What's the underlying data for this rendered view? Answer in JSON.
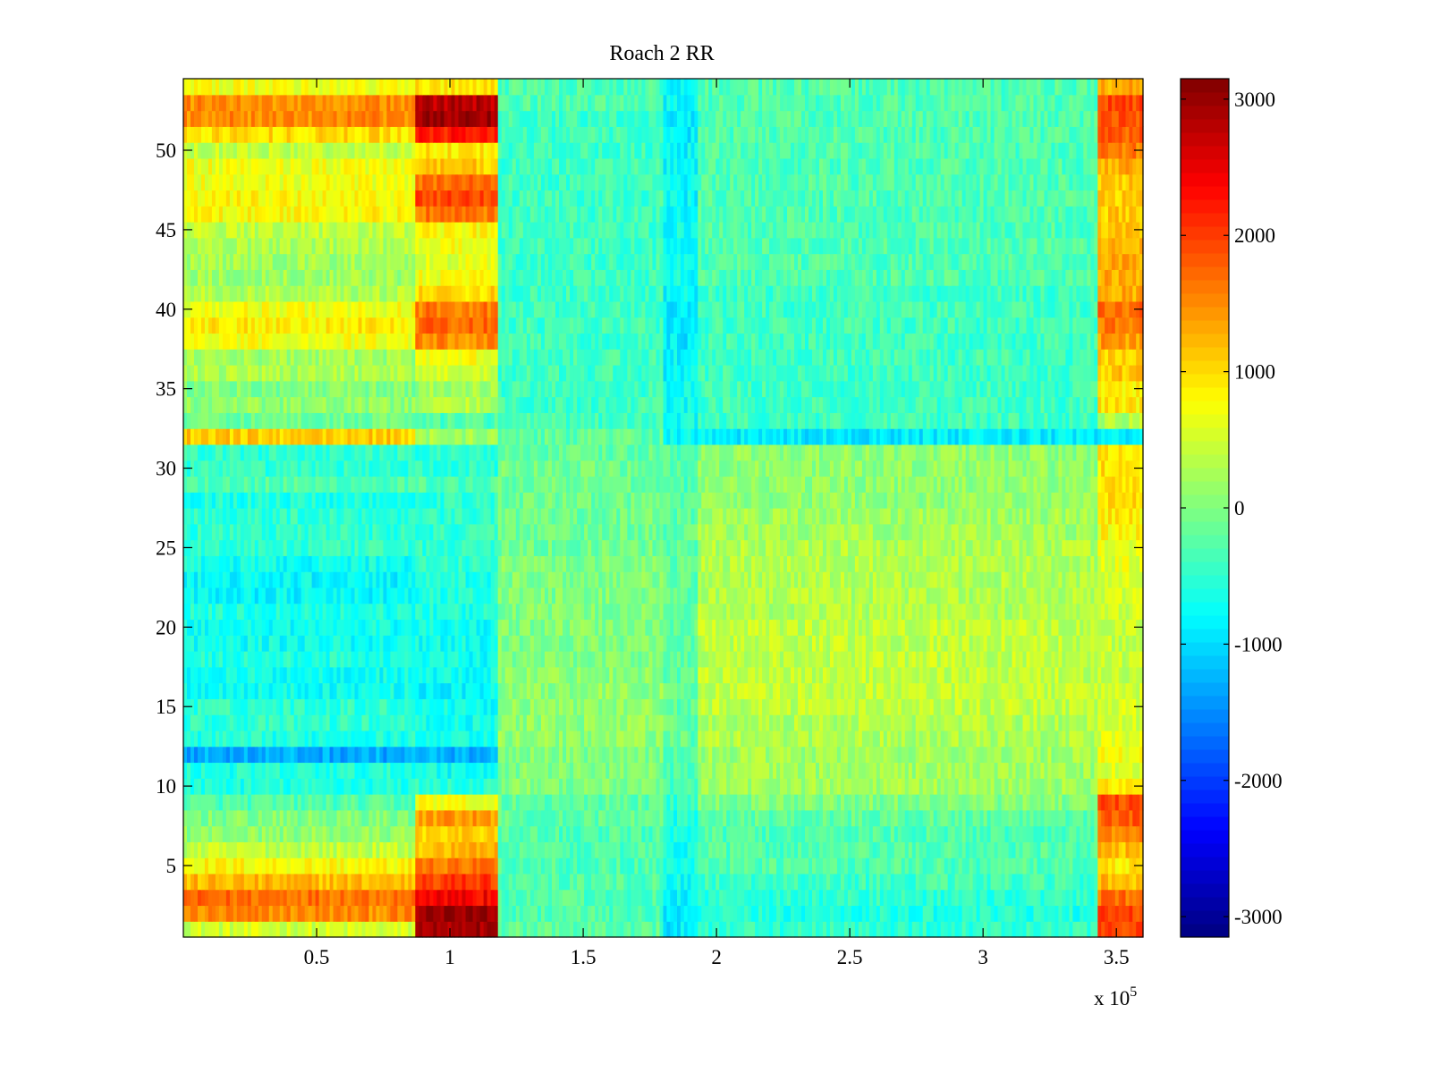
{
  "chart_data": {
    "type": "heatmap",
    "title": "Roach 2 RR",
    "xlabel": "",
    "ylabel": "",
    "x_exponent_label": "x 10",
    "x_exponent": "5",
    "xlim": [
      0,
      3.6
    ],
    "ylim": [
      0.5,
      54.5
    ],
    "x_ticks": [
      0.5,
      1,
      1.5,
      2,
      2.5,
      3,
      3.5
    ],
    "x_tick_labels": [
      "0.5",
      "1",
      "1.5",
      "2",
      "2.5",
      "3",
      "3.5"
    ],
    "y_ticks": [
      5,
      10,
      15,
      20,
      25,
      30,
      35,
      40,
      45,
      50
    ],
    "y_tick_labels": [
      "5",
      "10",
      "15",
      "20",
      "25",
      "30",
      "35",
      "40",
      "45",
      "50"
    ],
    "rows": 54,
    "colormap": "jet",
    "colorbar": {
      "clim": [
        -3150,
        3150
      ],
      "ticks": [
        -3000,
        -2000,
        -1000,
        0,
        1000,
        2000,
        3000
      ],
      "tick_labels": [
        "-3000",
        "-2000",
        "-1000",
        "0",
        "1000",
        "2000",
        "3000"
      ],
      "placement": "right"
    },
    "x_segments": [
      {
        "x_range": [
          0,
          0.87
        ],
        "description": "early segment"
      },
      {
        "x_range": [
          0.87,
          1.18
        ],
        "description": "peak segment"
      },
      {
        "x_range": [
          1.18,
          1.8
        ],
        "description": "middle segment"
      },
      {
        "x_range": [
          1.8,
          1.93
        ],
        "description": "dip segment"
      },
      {
        "x_range": [
          1.93,
          3.43
        ],
        "description": "late segment"
      },
      {
        "x_range": [
          3.43,
          3.6
        ],
        "description": "end segment"
      }
    ],
    "row_levels": {
      "early": [
        500,
        1500,
        1700,
        1200,
        800,
        400,
        100,
        0,
        -300,
        -600,
        -600,
        -1300,
        -600,
        -500,
        -500,
        -700,
        -700,
        -600,
        -700,
        -700,
        -600,
        -800,
        -800,
        -700,
        -500,
        -500,
        -500,
        -600,
        -300,
        -500,
        -500,
        1100,
        -100,
        100,
        0,
        300,
        200,
        700,
        900,
        700,
        300,
        200,
        200,
        300,
        400,
        800,
        800,
        700,
        700,
        400,
        1000,
        1500,
        1500,
        700
      ],
      "peak": [
        2900,
        3000,
        2400,
        2000,
        1600,
        1200,
        1100,
        1400,
        700,
        -500,
        -700,
        -1300,
        -700,
        -700,
        -700,
        -800,
        -700,
        -700,
        -700,
        -700,
        -600,
        -600,
        -600,
        -500,
        -500,
        -500,
        -500,
        -500,
        -300,
        -500,
        -500,
        200,
        -300,
        300,
        200,
        500,
        700,
        1500,
        1700,
        1600,
        1000,
        700,
        600,
        700,
        800,
        1600,
        1900,
        1700,
        1100,
        900,
        2200,
        3000,
        2800,
        900
      ],
      "middle": [
        -200,
        -300,
        -300,
        -300,
        -300,
        -300,
        -300,
        -200,
        -200,
        0,
        0,
        0,
        100,
        100,
        100,
        100,
        100,
        0,
        0,
        0,
        0,
        0,
        0,
        0,
        -100,
        -100,
        -100,
        -100,
        -100,
        -100,
        -200,
        -200,
        -400,
        -400,
        -400,
        -400,
        -400,
        -400,
        -400,
        -400,
        -400,
        -400,
        -400,
        -400,
        -400,
        -400,
        -400,
        -400,
        -400,
        -400,
        -400,
        -400,
        -300,
        -300
      ],
      "dip": [
        -900,
        -900,
        -800,
        -700,
        -700,
        -700,
        -700,
        -600,
        -500,
        -400,
        -300,
        -300,
        -200,
        -200,
        -200,
        -200,
        -200,
        -200,
        -200,
        -200,
        -200,
        -200,
        -200,
        -200,
        -200,
        -200,
        -200,
        -200,
        -300,
        -300,
        -300,
        -800,
        -700,
        -700,
        -700,
        -800,
        -800,
        -900,
        -900,
        -900,
        -800,
        -700,
        -700,
        -700,
        -700,
        -800,
        -800,
        -800,
        -800,
        -800,
        -900,
        -900,
        -800,
        -800
      ],
      "late": [
        -500,
        -600,
        -500,
        -400,
        -300,
        -300,
        -300,
        -200,
        0,
        200,
        200,
        200,
        300,
        300,
        400,
        400,
        400,
        400,
        400,
        400,
        300,
        300,
        300,
        300,
        300,
        200,
        200,
        100,
        100,
        100,
        100,
        -900,
        -400,
        -400,
        -400,
        -400,
        -400,
        -400,
        -400,
        -400,
        -400,
        -300,
        -300,
        -300,
        -300,
        -300,
        -300,
        -300,
        -300,
        -300,
        -300,
        -300,
        -300,
        -300
      ],
      "end": [
        1900,
        1900,
        1700,
        1200,
        900,
        1200,
        1500,
        1800,
        1900,
        900,
        600,
        700,
        600,
        500,
        500,
        500,
        400,
        400,
        400,
        400,
        500,
        500,
        500,
        600,
        600,
        800,
        900,
        1000,
        900,
        1000,
        1000,
        -900,
        300,
        900,
        900,
        1100,
        1100,
        1400,
        1600,
        1700,
        1300,
        1300,
        1300,
        1300,
        1100,
        1100,
        1100,
        1100,
        1300,
        1600,
        1800,
        1900,
        1900,
        1300
      ]
    }
  }
}
